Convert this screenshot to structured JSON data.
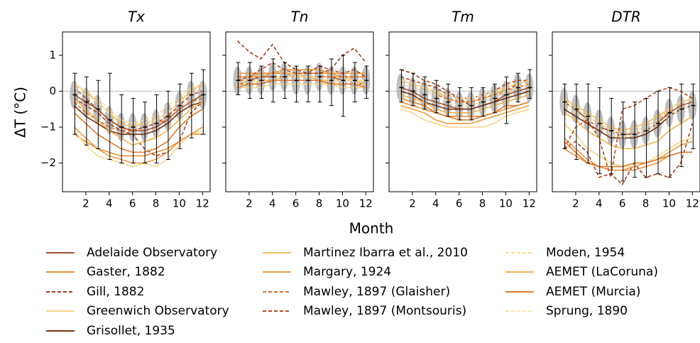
{
  "shared": {
    "xlabel": "Month",
    "ylabel": "ΔT (°C)",
    "x": [
      1,
      2,
      3,
      4,
      5,
      6,
      7,
      8,
      9,
      10,
      11,
      12
    ],
    "xlim": [
      0,
      12.65
    ],
    "xticks": [
      2,
      4,
      6,
      8,
      10,
      12
    ],
    "ylim": [
      -2.8,
      1.65
    ],
    "yticks": [
      {
        "value": -2,
        "label": "−2"
      },
      {
        "value": -1,
        "label": "−1"
      },
      0,
      1
    ],
    "grid": false,
    "series_styles": [
      {
        "name": "Adelaide Observatory",
        "color": "#a0522d",
        "dash": false
      },
      {
        "name": "Gaster, 1882",
        "color": "#e8913a",
        "dash": false
      },
      {
        "name": "Gill, 1882",
        "color": "#a0401c",
        "dash": true
      },
      {
        "name": "Greenwich Observatory",
        "color": "#f6d58a",
        "dash": false
      },
      {
        "name": "Grisollet, 1935",
        "color": "#7a3210",
        "dash": false
      },
      {
        "name": "Martinez Ibarra et al., 2010",
        "color": "#f5be5a",
        "dash": false
      },
      {
        "name": "Margary, 1924",
        "color": "#eb9a45",
        "dash": false
      },
      {
        "name": "Mawley, 1897 (Glaisher)",
        "color": "#d9702c",
        "dash": true
      },
      {
        "name": "Mawley, 1897 (Montsouris)",
        "color": "#b84a1c",
        "dash": true
      },
      {
        "name": "Moden, 1954",
        "color": "#f9d98a",
        "dash": true
      },
      {
        "name": "AEMET (LaCoruna)",
        "color": "#f2b04e",
        "dash": false
      },
      {
        "name": "AEMET (Murcia)",
        "color": "#e07a2a",
        "dash": false
      },
      {
        "name": "Sprung, 1890",
        "color": "#fbe3b0",
        "dash": true
      }
    ]
  },
  "chart_data": [
    {
      "type": "line",
      "title": "Tx",
      "means": [
        -0.1,
        -0.3,
        -0.5,
        -0.8,
        -1.0,
        -1.0,
        -1.0,
        -0.9,
        -0.7,
        -0.4,
        -0.1,
        -0.1
      ],
      "err_low": [
        -1.2,
        -1.5,
        -1.6,
        -1.9,
        -2.0,
        -2.0,
        -2.0,
        -2.0,
        -1.9,
        -1.6,
        -1.3,
        -1.2
      ],
      "err_high": [
        0.5,
        0.4,
        0.3,
        0.5,
        -0.1,
        -0.2,
        -0.3,
        -0.1,
        0.0,
        0.2,
        0.5,
        0.6
      ],
      "series": [
        {
          "values": [
            -0.1,
            -0.3,
            -0.5,
            -0.8,
            -1.0,
            -1.1,
            -1.1,
            -1.0,
            -0.8,
            -0.5,
            -0.3,
            -0.1
          ]
        },
        {
          "values": [
            -1.2,
            -1.4,
            -1.6,
            -1.7,
            -1.8,
            -1.8,
            -1.8,
            -1.7,
            -1.6,
            -1.4,
            -1.2,
            -1.2
          ]
        },
        {
          "values": [
            -0.2,
            -0.4,
            -0.6,
            -0.9,
            -1.1,
            -1.2,
            -1.6,
            -1.8,
            -1.7,
            -1.4,
            -0.6,
            -0.3
          ]
        },
        {
          "values": [
            -1.1,
            -1.5,
            -1.8,
            -1.9,
            -2.0,
            -2.1,
            -2.0,
            -2.1,
            -1.9,
            -1.5,
            -1.2,
            -1.1
          ]
        },
        {
          "values": [
            -0.4,
            -0.7,
            -0.9,
            -1.1,
            -1.2,
            -1.2,
            -1.2,
            -1.1,
            -0.9,
            -0.6,
            -0.4,
            -0.3
          ]
        },
        {
          "values": [
            0.2,
            0.0,
            -0.3,
            -0.6,
            -0.9,
            -1.0,
            -0.9,
            -0.8,
            -0.6,
            -0.3,
            0.0,
            0.2
          ]
        },
        {
          "values": [
            -1.0,
            -1.3,
            -1.6,
            -1.8,
            -1.9,
            -2.0,
            -2.0,
            -1.9,
            -1.7,
            -1.4,
            -1.2,
            -1.0
          ]
        },
        {
          "values": [
            -0.3,
            -0.6,
            -0.8,
            -1.0,
            -1.1,
            -1.1,
            -1.0,
            -0.9,
            -0.8,
            -0.5,
            -0.3,
            -0.2
          ]
        },
        {
          "values": [
            0.1,
            -0.2,
            -0.5,
            -0.8,
            -1.0,
            -1.1,
            -1.0,
            -0.9,
            -0.7,
            -0.4,
            -0.1,
            0.0
          ]
        },
        {
          "values": [
            0.2,
            0.0,
            -0.2,
            -0.5,
            -0.8,
            -0.9,
            -0.8,
            -0.7,
            -0.4,
            -0.2,
            0.1,
            0.2
          ]
        },
        {
          "values": [
            -0.2,
            -0.5,
            -0.8,
            -1.1,
            -1.3,
            -1.5,
            -1.4,
            -1.3,
            -1.1,
            -0.8,
            -0.5,
            -0.3
          ]
        },
        {
          "values": [
            -0.6,
            -0.9,
            -1.2,
            -1.4,
            -1.6,
            -1.7,
            -1.7,
            -1.6,
            -1.4,
            -1.0,
            -0.7,
            -0.5
          ]
        },
        {
          "values": [
            0.1,
            -0.1,
            -0.3,
            -0.6,
            -0.8,
            -0.9,
            -0.9,
            -0.8,
            -0.6,
            -0.3,
            -0.1,
            0.1
          ]
        }
      ]
    },
    {
      "type": "line",
      "title": "Tn",
      "means": [
        0.3,
        0.3,
        0.3,
        0.4,
        0.4,
        0.3,
        0.3,
        0.4,
        0.3,
        0.3,
        0.3,
        0.3
      ],
      "err_low": [
        -0.1,
        -0.2,
        -0.2,
        -0.3,
        -0.2,
        -0.3,
        -0.3,
        -0.3,
        -0.4,
        -0.7,
        -0.3,
        -0.2
      ],
      "err_high": [
        0.8,
        0.8,
        0.7,
        0.9,
        0.8,
        0.7,
        0.7,
        0.7,
        0.9,
        1.0,
        0.8,
        0.7
      ],
      "series": [
        {
          "values": [
            0.3,
            0.3,
            0.4,
            0.4,
            0.4,
            0.4,
            0.4,
            0.4,
            0.4,
            0.3,
            0.3,
            0.3
          ]
        },
        {
          "values": [
            0.4,
            0.4,
            0.5,
            0.5,
            0.5,
            0.5,
            0.5,
            0.5,
            0.5,
            0.4,
            0.4,
            0.4
          ]
        },
        {
          "values": [
            1.4,
            1.1,
            0.9,
            1.3,
            0.8,
            0.6,
            0.5,
            0.5,
            0.6,
            1.0,
            1.2,
            0.8
          ]
        },
        {
          "values": [
            0.1,
            0.1,
            0.1,
            0.2,
            0.2,
            0.2,
            0.2,
            0.2,
            0.2,
            0.1,
            0.1,
            0.1
          ]
        },
        {
          "values": [
            0.2,
            0.2,
            0.2,
            0.3,
            0.3,
            0.3,
            0.3,
            0.3,
            0.2,
            0.2,
            0.2,
            0.2
          ]
        },
        {
          "values": [
            0.3,
            0.4,
            0.4,
            0.5,
            0.5,
            0.5,
            0.4,
            0.4,
            0.4,
            0.4,
            0.3,
            0.3
          ]
        },
        {
          "values": [
            0.5,
            0.5,
            0.5,
            0.5,
            0.6,
            0.6,
            0.6,
            0.6,
            0.5,
            0.5,
            0.5,
            0.5
          ]
        },
        {
          "values": [
            0.4,
            0.4,
            0.4,
            0.5,
            0.5,
            0.4,
            0.4,
            0.4,
            0.4,
            0.4,
            0.4,
            0.4
          ]
        },
        {
          "values": [
            0.3,
            0.4,
            0.6,
            0.8,
            0.6,
            0.5,
            0.5,
            0.7,
            0.6,
            0.5,
            0.6,
            0.4
          ]
        },
        {
          "values": [
            0.2,
            0.2,
            0.3,
            0.3,
            0.3,
            0.3,
            0.3,
            0.3,
            0.3,
            0.2,
            0.2,
            0.2
          ]
        },
        {
          "values": [
            0.2,
            0.3,
            0.3,
            0.3,
            0.4,
            0.4,
            0.4,
            0.3,
            0.3,
            0.3,
            0.3,
            0.2
          ]
        },
        {
          "values": [
            0.1,
            0.2,
            0.2,
            0.3,
            0.3,
            0.3,
            0.3,
            0.3,
            0.2,
            0.2,
            0.2,
            0.1
          ]
        },
        {
          "values": [
            0.3,
            0.3,
            0.3,
            0.4,
            0.4,
            0.4,
            0.4,
            0.4,
            0.3,
            0.3,
            0.3,
            0.3
          ]
        }
      ]
    },
    {
      "type": "line",
      "title": "Tm",
      "means": [
        0.1,
        0.0,
        -0.1,
        -0.2,
        -0.3,
        -0.4,
        -0.4,
        -0.3,
        -0.2,
        -0.1,
        0.1,
        0.1
      ],
      "err_low": [
        -0.3,
        -0.4,
        -0.5,
        -0.6,
        -0.7,
        -0.8,
        -0.8,
        -0.7,
        -0.6,
        -0.9,
        -0.3,
        -0.2
      ],
      "err_high": [
        0.6,
        0.5,
        0.4,
        0.3,
        0.2,
        0.1,
        0.1,
        0.1,
        0.2,
        0.4,
        0.5,
        0.6
      ],
      "series": [
        {
          "values": [
            0.1,
            0.0,
            -0.2,
            -0.3,
            -0.4,
            -0.5,
            -0.5,
            -0.4,
            -0.3,
            -0.1,
            0.0,
            0.1
          ]
        },
        {
          "values": [
            -0.3,
            -0.4,
            -0.5,
            -0.6,
            -0.7,
            -0.7,
            -0.7,
            -0.7,
            -0.6,
            -0.5,
            -0.4,
            -0.3
          ]
        },
        {
          "values": [
            0.6,
            0.5,
            0.3,
            0.2,
            0.0,
            -0.2,
            -0.4,
            -0.3,
            -0.2,
            0.0,
            0.2,
            0.3
          ]
        },
        {
          "values": [
            -0.5,
            -0.6,
            -0.8,
            -0.9,
            -1.0,
            -1.0,
            -1.0,
            -1.0,
            -0.9,
            -0.7,
            -0.6,
            -0.5
          ]
        },
        {
          "values": [
            0.0,
            -0.1,
            -0.3,
            -0.4,
            -0.5,
            -0.5,
            -0.5,
            -0.4,
            -0.3,
            -0.2,
            -0.1,
            0.0
          ]
        },
        {
          "values": [
            0.3,
            0.2,
            0.1,
            0.0,
            -0.2,
            -0.3,
            -0.3,
            -0.2,
            -0.1,
            0.1,
            0.2,
            0.3
          ]
        },
        {
          "values": [
            -0.4,
            -0.5,
            -0.6,
            -0.8,
            -0.9,
            -0.9,
            -0.9,
            -0.8,
            -0.7,
            -0.6,
            -0.5,
            -0.4
          ]
        },
        {
          "values": [
            0.2,
            0.1,
            0.0,
            -0.1,
            -0.2,
            -0.3,
            -0.3,
            -0.2,
            -0.1,
            0.0,
            0.1,
            0.2
          ]
        },
        {
          "values": [
            0.4,
            0.3,
            0.2,
            0.1,
            -0.1,
            -0.2,
            -0.2,
            -0.1,
            0.0,
            0.2,
            0.3,
            0.3
          ]
        },
        {
          "values": [
            0.3,
            0.2,
            0.1,
            0.0,
            -0.1,
            -0.2,
            -0.2,
            -0.1,
            0.0,
            0.1,
            0.2,
            0.3
          ]
        },
        {
          "values": [
            -0.1,
            -0.2,
            -0.3,
            -0.5,
            -0.6,
            -0.6,
            -0.6,
            -0.5,
            -0.4,
            -0.3,
            -0.2,
            -0.1
          ]
        },
        {
          "values": [
            -0.2,
            -0.3,
            -0.4,
            -0.6,
            -0.7,
            -0.8,
            -0.8,
            -0.7,
            -0.6,
            -0.4,
            -0.4,
            -0.3
          ]
        },
        {
          "values": [
            0.2,
            0.1,
            0.0,
            -0.1,
            -0.3,
            -0.4,
            -0.4,
            -0.3,
            -0.2,
            0.0,
            0.1,
            0.2
          ]
        }
      ]
    },
    {
      "type": "line",
      "title": "DTR",
      "means": [
        -0.3,
        -0.5,
        -0.7,
        -0.9,
        -1.1,
        -1.2,
        -1.2,
        -1.1,
        -0.9,
        -0.6,
        -0.5,
        -0.4
      ],
      "err_low": [
        -1.6,
        -1.9,
        -2.0,
        -2.3,
        -2.3,
        -2.5,
        -2.4,
        -2.4,
        -2.3,
        -2.4,
        -2.1,
        -1.6
      ],
      "err_high": [
        0.2,
        0.2,
        0.2,
        0.1,
        -0.2,
        -0.3,
        -0.3,
        -0.2,
        0.0,
        0.1,
        0.2,
        0.2
      ],
      "series": [
        {
          "values": [
            -0.3,
            -0.5,
            -0.8,
            -1.0,
            -1.1,
            -1.2,
            -1.2,
            -1.1,
            -0.9,
            -0.6,
            -0.4,
            -0.3
          ]
        },
        {
          "values": [
            -1.6,
            -1.8,
            -2.0,
            -2.1,
            -2.2,
            -2.2,
            -2.2,
            -2.1,
            -2.0,
            -1.8,
            -1.7,
            -1.7
          ]
        },
        {
          "values": [
            -1.6,
            -1.4,
            -1.7,
            -2.4,
            -2.3,
            -2.6,
            -2.0,
            -2.4,
            -2.3,
            -2.4,
            -2.0,
            -0.9
          ]
        },
        {
          "values": [
            -0.9,
            -1.2,
            -1.6,
            -1.8,
            -2.0,
            -2.1,
            -2.1,
            -2.0,
            -1.8,
            -1.6,
            -1.4,
            -1.3
          ]
        },
        {
          "values": [
            -0.5,
            -0.7,
            -0.9,
            -1.1,
            -1.3,
            -1.3,
            -1.3,
            -1.2,
            -1.0,
            -0.7,
            -0.5,
            -0.4
          ]
        },
        {
          "values": [
            -0.2,
            -0.4,
            -0.6,
            -0.8,
            -1.0,
            -1.1,
            -1.0,
            -0.9,
            -0.7,
            -0.5,
            -0.3,
            -0.2
          ]
        },
        {
          "values": [
            -1.3,
            -1.6,
            -1.9,
            -2.1,
            -2.2,
            -2.2,
            -2.1,
            -2.0,
            -1.9,
            -1.7,
            -1.5,
            -1.4
          ]
        },
        {
          "values": [
            -0.3,
            -0.5,
            -0.7,
            -0.9,
            -1.1,
            -1.2,
            -1.1,
            -1.0,
            -0.8,
            -0.6,
            -0.4,
            -0.3
          ]
        },
        {
          "values": [
            -1.6,
            -1.0,
            -0.8,
            -1.3,
            -2.4,
            -0.5,
            -0.4,
            -0.2,
            0.0,
            0.1,
            0.0,
            -0.2
          ]
        },
        {
          "values": [
            -0.3,
            -0.5,
            -0.7,
            -0.9,
            -1.1,
            -1.2,
            -1.1,
            -1.0,
            -0.8,
            -0.5,
            -0.3,
            -0.2
          ]
        },
        {
          "values": [
            -0.6,
            -0.8,
            -1.1,
            -1.3,
            -1.5,
            -1.6,
            -1.6,
            -1.5,
            -1.4,
            -1.1,
            -0.9,
            -0.7
          ]
        },
        {
          "values": [
            -1.4,
            -1.7,
            -2.0,
            -2.1,
            -2.1,
            -2.1,
            -2.0,
            -2.0,
            -1.9,
            -1.8,
            -1.7,
            -1.7
          ]
        },
        {
          "values": [
            -0.4,
            -0.6,
            -0.8,
            -1.0,
            -1.2,
            -1.3,
            -1.2,
            -1.1,
            -0.9,
            -0.7,
            -0.5,
            -0.4
          ]
        }
      ]
    }
  ]
}
